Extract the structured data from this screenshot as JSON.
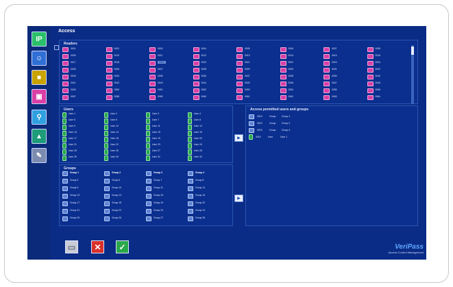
{
  "window": {
    "title": "Access"
  },
  "sidebar": {
    "items": [
      {
        "label": "IP",
        "icon": "ip-icon",
        "color": "#2bbf6a"
      },
      {
        "label": "",
        "icon": "users-icon",
        "color": "#2f6fd6"
      },
      {
        "label": "",
        "icon": "person-card-icon",
        "color": "#c9a400"
      },
      {
        "label": "",
        "icon": "door-icon",
        "color": "#d93fa6"
      },
      {
        "label": "",
        "icon": "key-icon",
        "color": "#2fa0e0"
      },
      {
        "label": "",
        "icon": "upload-icon",
        "color": "#1e9c7a"
      },
      {
        "label": "",
        "icon": "tools-icon",
        "color": "#7c8bb0"
      }
    ]
  },
  "readers": {
    "title": "Readers",
    "items": [
      [
        "0001",
        "0002",
        "0003",
        "0004",
        "0005",
        "0006",
        "0007",
        "0008"
      ],
      [
        "0009",
        "0010",
        "0011",
        "0012",
        "0013",
        "0014",
        "0015",
        "0016"
      ],
      [
        "0017",
        "0018",
        "0019",
        "0020",
        "0021",
        "0022",
        "0023",
        "0024"
      ],
      [
        "0025",
        "0026",
        "0027",
        "0028",
        "0029",
        "0030",
        "0031",
        "0032"
      ],
      [
        "0033",
        "0034",
        "0035",
        "0036",
        "0037",
        "0038",
        "0039",
        "0040"
      ],
      [
        "0041",
        "0042",
        "0043",
        "0044",
        "0045",
        "0046",
        "0047",
        "0048"
      ],
      [
        "0049",
        "0050",
        "0051",
        "0052",
        "0053",
        "0054",
        "0055",
        "0056"
      ],
      [
        "0057",
        "0058",
        "0059",
        "0060",
        "0061",
        "0062",
        "0063",
        "0064"
      ]
    ]
  },
  "users": {
    "title": "Users",
    "items": [
      [
        "User 1",
        "User 2",
        "User 3",
        "User 4"
      ],
      [
        "User 5",
        "User 6",
        "User 7",
        "User 8"
      ],
      [
        "User 9",
        "User 10",
        "User 11",
        "User 12"
      ],
      [
        "User 13",
        "User 14",
        "User 15",
        "User 16"
      ],
      [
        "User 17",
        "User 18",
        "User 19",
        "User 20"
      ],
      [
        "User 21",
        "User 22",
        "User 23",
        "User 24"
      ],
      [
        "User 25",
        "User 26",
        "User 27",
        "User 28"
      ],
      [
        "User 29",
        "User 30",
        "User 31",
        "User 32"
      ]
    ]
  },
  "groups": {
    "title": "Groups",
    "items": [
      [
        "Group 1",
        "Group 2",
        "Group 3",
        "Group 4"
      ],
      [
        "Group 5",
        "Group 6",
        "Group 7",
        "Group 8"
      ],
      [
        "Group 9",
        "Group 10",
        "Group 11",
        "Group 12"
      ],
      [
        "Group 13",
        "Group 14",
        "Group 15",
        "Group 16"
      ],
      [
        "Group 17",
        "Group 18",
        "Group 19",
        "Group 20"
      ],
      [
        "Group 21",
        "Group 22",
        "Group 23",
        "Group 24"
      ],
      [
        "Group 25",
        "Group 26",
        "Group 27",
        "Group 28"
      ]
    ]
  },
  "permitted": {
    "title": "Access permitted users and groups",
    "items": [
      {
        "reader": "0019",
        "kind": "Group",
        "name": "Group 1"
      },
      {
        "reader": "0019",
        "kind": "Group",
        "name": "Group 2"
      },
      {
        "reader": "0019",
        "kind": "Group",
        "name": "Group 3"
      },
      {
        "reader": "0019",
        "kind": "User",
        "name": "User 1"
      }
    ]
  },
  "brand": {
    "name": "VeriPass",
    "tagline": "Access Control Management"
  }
}
